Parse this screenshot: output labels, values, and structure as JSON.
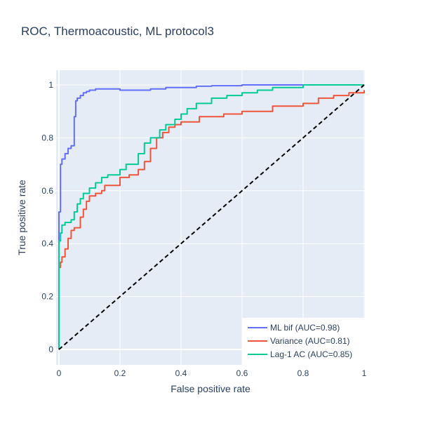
{
  "chart_data": {
    "type": "line",
    "title": "ROC, Thermoacoustic, ML protocol3",
    "xlabel": "False positive rate",
    "ylabel": "True positive rate",
    "xlim": [
      0,
      1
    ],
    "ylim": [
      0,
      1
    ],
    "xticks": [
      0,
      0.2,
      0.4,
      0.6,
      0.8,
      1
    ],
    "xtick_labels": [
      "0",
      "0.2",
      "0.4",
      "0.6",
      "0.8",
      "1"
    ],
    "yticks": [
      0,
      0.2,
      0.4,
      0.6,
      0.8,
      1
    ],
    "ytick_labels": [
      "0",
      "0.2",
      "0.4",
      "0.6",
      "0.8",
      "1"
    ],
    "grid": true,
    "legend_position": "bottom-right",
    "series": [
      {
        "name": "ML bif (AUC=0.98)",
        "color": "#636efa",
        "x": [
          0,
          0,
          0.005,
          0.005,
          0.01,
          0.01,
          0.02,
          0.02,
          0.03,
          0.03,
          0.04,
          0.04,
          0.05,
          0.05,
          0.055,
          0.055,
          0.06,
          0.06,
          0.07,
          0.07,
          0.08,
          0.08,
          0.09,
          0.09,
          0.1,
          0.1,
          0.12,
          0.12,
          0.2,
          0.2,
          0.3,
          0.3,
          0.35,
          0.35,
          0.45,
          0.45,
          0.5,
          0.5,
          0.6,
          0.6,
          0.82,
          0.82,
          1
        ],
        "y": [
          0,
          0.52,
          0.52,
          0.7,
          0.7,
          0.72,
          0.72,
          0.74,
          0.74,
          0.76,
          0.76,
          0.77,
          0.77,
          0.88,
          0.88,
          0.94,
          0.94,
          0.95,
          0.95,
          0.96,
          0.96,
          0.97,
          0.97,
          0.975,
          0.975,
          0.98,
          0.98,
          0.985,
          0.985,
          0.98,
          0.98,
          0.985,
          0.985,
          0.99,
          0.99,
          0.995,
          0.995,
          0.997,
          0.997,
          1,
          1,
          1,
          1
        ]
      },
      {
        "name": "Variance (AUC=0.81)",
        "color": "#ef553b",
        "x": [
          0,
          0,
          0.005,
          0.005,
          0.01,
          0.01,
          0.02,
          0.02,
          0.03,
          0.03,
          0.04,
          0.04,
          0.05,
          0.05,
          0.07,
          0.07,
          0.08,
          0.08,
          0.09,
          0.09,
          0.1,
          0.1,
          0.12,
          0.12,
          0.14,
          0.14,
          0.15,
          0.15,
          0.2,
          0.2,
          0.23,
          0.23,
          0.26,
          0.26,
          0.28,
          0.28,
          0.3,
          0.3,
          0.32,
          0.32,
          0.34,
          0.34,
          0.36,
          0.36,
          0.38,
          0.38,
          0.4,
          0.4,
          0.46,
          0.46,
          0.54,
          0.54,
          0.6,
          0.6,
          0.66,
          0.66,
          0.7,
          0.7,
          0.8,
          0.8,
          0.85,
          0.85,
          0.9,
          0.9,
          0.95,
          0.95,
          1,
          1
        ],
        "y": [
          0,
          0.31,
          0.31,
          0.33,
          0.33,
          0.35,
          0.35,
          0.38,
          0.38,
          0.42,
          0.42,
          0.45,
          0.45,
          0.46,
          0.46,
          0.5,
          0.5,
          0.53,
          0.53,
          0.56,
          0.56,
          0.58,
          0.58,
          0.59,
          0.59,
          0.6,
          0.6,
          0.62,
          0.62,
          0.65,
          0.65,
          0.66,
          0.66,
          0.68,
          0.68,
          0.71,
          0.71,
          0.76,
          0.76,
          0.8,
          0.8,
          0.82,
          0.82,
          0.84,
          0.84,
          0.85,
          0.85,
          0.86,
          0.86,
          0.88,
          0.88,
          0.89,
          0.89,
          0.9,
          0.9,
          0.9,
          0.9,
          0.92,
          0.92,
          0.93,
          0.93,
          0.95,
          0.95,
          0.96,
          0.96,
          0.97,
          0.97,
          0.98
        ]
      },
      {
        "name": "Lag-1 AC (AUC=0.85)",
        "color": "#00cc96",
        "x": [
          0,
          0,
          0.005,
          0.005,
          0.01,
          0.01,
          0.02,
          0.02,
          0.04,
          0.04,
          0.05,
          0.05,
          0.06,
          0.06,
          0.07,
          0.07,
          0.08,
          0.08,
          0.1,
          0.1,
          0.12,
          0.12,
          0.14,
          0.14,
          0.16,
          0.16,
          0.2,
          0.2,
          0.22,
          0.22,
          0.26,
          0.26,
          0.28,
          0.28,
          0.3,
          0.3,
          0.33,
          0.33,
          0.35,
          0.35,
          0.38,
          0.38,
          0.4,
          0.4,
          0.42,
          0.42,
          0.45,
          0.45,
          0.5,
          0.5,
          0.55,
          0.55,
          0.6,
          0.6,
          0.65,
          0.65,
          0.7,
          0.7,
          0.8,
          0.8,
          0.9,
          0.9,
          1
        ],
        "y": [
          0,
          0.41,
          0.41,
          0.44,
          0.44,
          0.47,
          0.47,
          0.48,
          0.48,
          0.49,
          0.49,
          0.52,
          0.52,
          0.55,
          0.55,
          0.57,
          0.57,
          0.59,
          0.59,
          0.61,
          0.61,
          0.63,
          0.63,
          0.65,
          0.65,
          0.66,
          0.66,
          0.68,
          0.68,
          0.7,
          0.7,
          0.74,
          0.74,
          0.78,
          0.78,
          0.8,
          0.8,
          0.83,
          0.83,
          0.85,
          0.85,
          0.87,
          0.87,
          0.89,
          0.89,
          0.91,
          0.91,
          0.93,
          0.93,
          0.95,
          0.95,
          0.96,
          0.96,
          0.97,
          0.97,
          0.98,
          0.98,
          0.99,
          0.99,
          1,
          1,
          1,
          1
        ]
      },
      {
        "name": "",
        "color": "#000000",
        "dash": true,
        "x": [
          0,
          1
        ],
        "y": [
          0,
          1
        ]
      }
    ]
  }
}
